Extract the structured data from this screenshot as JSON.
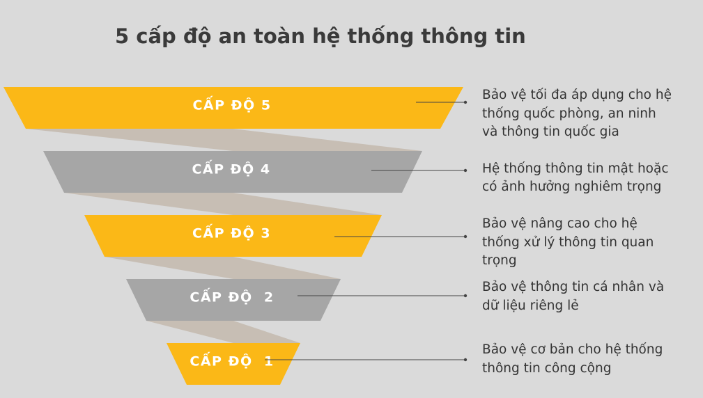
{
  "title": "5 cấp độ an toàn hệ thống thông tin",
  "levels": [
    {
      "label": "CẤP ĐỘ 5",
      "description": [
        "Bảo vệ tối đa áp dụng cho hệ",
        "thống quốc phòng, an ninh",
        "và thông tin quốc gia"
      ]
    },
    {
      "label": "CẤP ĐỘ 4",
      "description": [
        "Hệ thống thông tin mật hoặc",
        "có ảnh hưởng nghiêm trọng"
      ]
    },
    {
      "label": "CẤP ĐỘ 3",
      "description": [
        "Bảo vệ nâng cao cho hệ",
        "thống xử lý thông tin quan",
        "trọng"
      ]
    },
    {
      "label": "CẤP ĐỘ  2",
      "description": [
        "Bảo vệ thông tin cá nhân và",
        "dữ liệu riêng lẻ"
      ]
    },
    {
      "label": "CẤP ĐỘ  1",
      "description": [
        "Bảo vệ cơ bản cho hệ thống",
        "thông tin công cộng"
      ]
    }
  ]
}
